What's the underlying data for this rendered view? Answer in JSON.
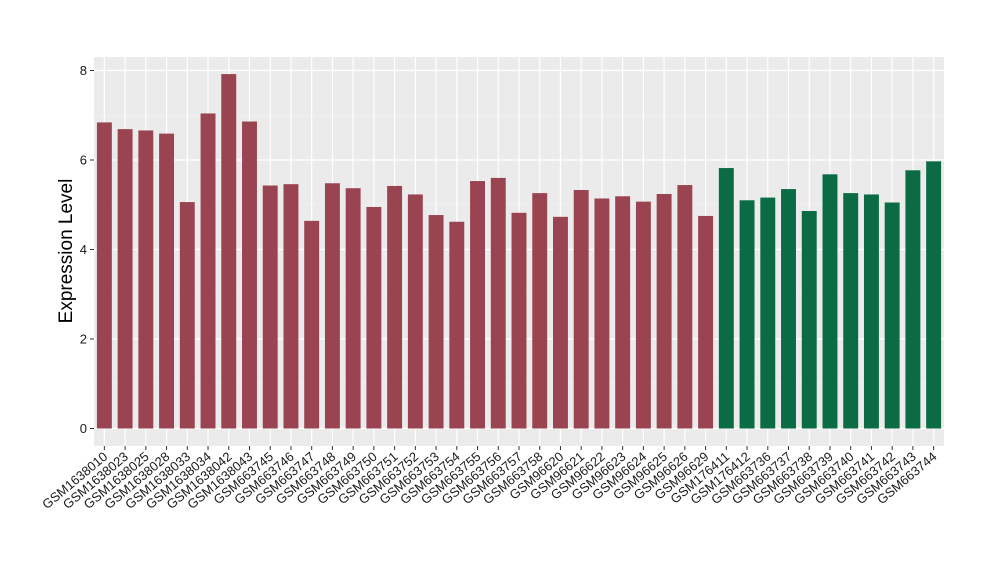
{
  "chart_data": {
    "type": "bar",
    "ylabel": "Expression Level",
    "xlabel": "",
    "ylim": [
      0,
      8.3
    ],
    "yticks": [
      0,
      2,
      4,
      6,
      8
    ],
    "grid": true,
    "legend": "none",
    "colors": {
      "panel_bg": "#ebebeb",
      "grid_major": "#ffffff",
      "grid_minor": "#f5f5f5",
      "group1": "#9b4451",
      "group2": "#0a6b45"
    },
    "categories": [
      "GSM1638010",
      "GSM1638023",
      "GSM1638025",
      "GSM1638028",
      "GSM1638033",
      "GSM1638034",
      "GSM1638042",
      "GSM1638043",
      "GSM663745",
      "GSM663746",
      "GSM663747",
      "GSM663748",
      "GSM663749",
      "GSM663750",
      "GSM663751",
      "GSM663752",
      "GSM663753",
      "GSM663754",
      "GSM663755",
      "GSM663756",
      "GSM663757",
      "GSM663758",
      "GSM96620",
      "GSM96621",
      "GSM96622",
      "GSM96623",
      "GSM96624",
      "GSM96625",
      "GSM96626",
      "GSM96629",
      "GSM176411",
      "GSM176412",
      "GSM663736",
      "GSM663737",
      "GSM663738",
      "GSM663739",
      "GSM663740",
      "GSM663741",
      "GSM663742",
      "GSM663743",
      "GSM663744"
    ],
    "values": [
      6.84,
      6.69,
      6.66,
      6.59,
      5.06,
      7.04,
      7.92,
      6.86,
      5.43,
      5.46,
      4.64,
      5.48,
      5.37,
      4.95,
      5.42,
      5.23,
      4.77,
      4.62,
      5.53,
      5.6,
      4.82,
      5.26,
      4.73,
      5.33,
      5.14,
      5.19,
      5.07,
      5.24,
      5.44,
      4.75,
      5.82,
      5.1,
      5.16,
      5.35,
      4.86,
      5.68,
      5.26,
      5.23,
      5.05,
      5.77,
      5.97
    ],
    "groups": [
      1,
      1,
      1,
      1,
      1,
      1,
      1,
      1,
      1,
      1,
      1,
      1,
      1,
      1,
      1,
      1,
      1,
      1,
      1,
      1,
      1,
      1,
      1,
      1,
      1,
      1,
      1,
      1,
      1,
      1,
      2,
      2,
      2,
      2,
      2,
      2,
      2,
      2,
      2,
      2,
      2
    ]
  }
}
